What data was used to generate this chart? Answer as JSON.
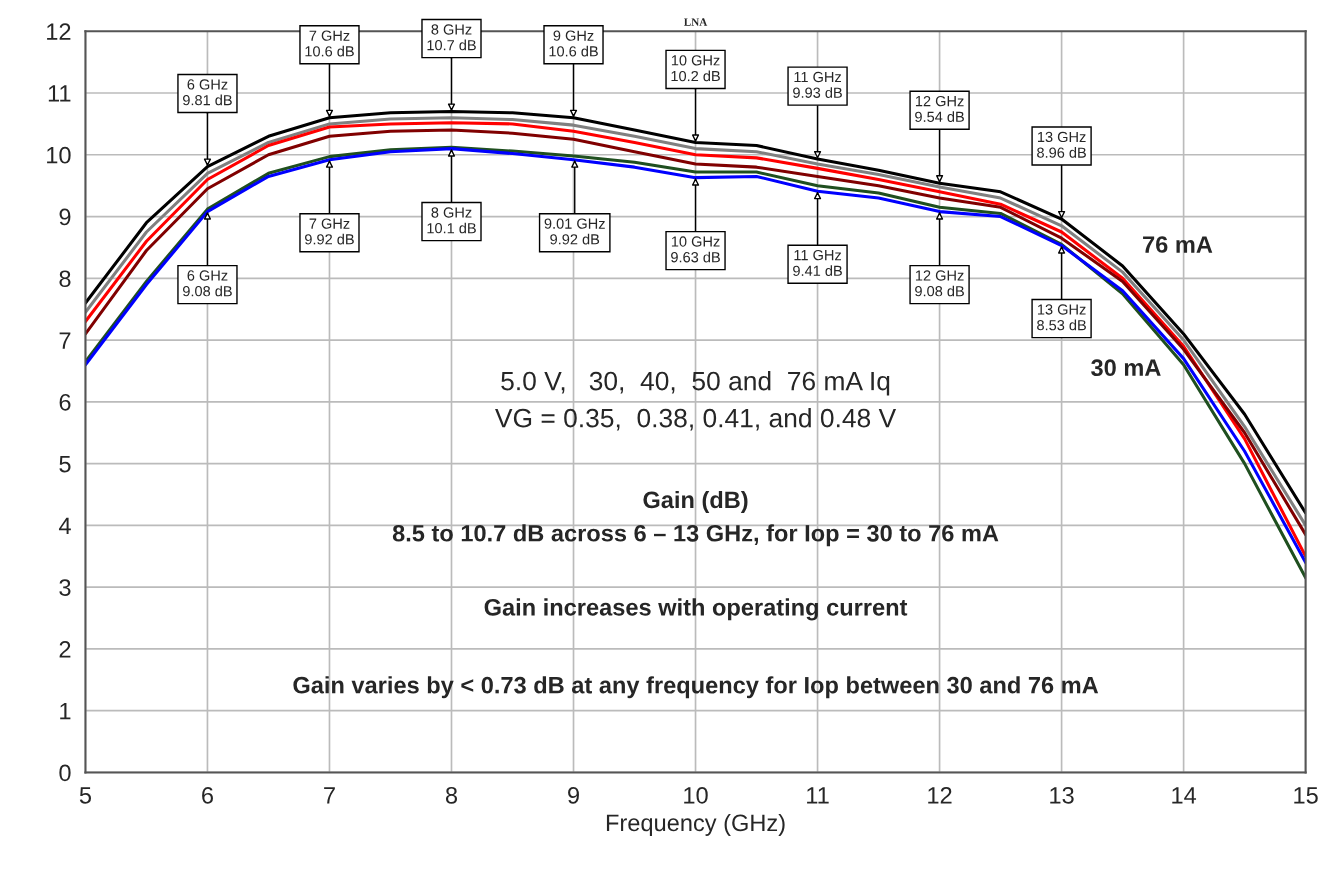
{
  "chart_data": {
    "type": "line",
    "title": "LNA",
    "xlabel": "Frequency (GHz)",
    "xlim": [
      5,
      15
    ],
    "ylim": [
      0,
      12
    ],
    "xticks": [
      5,
      6,
      7,
      8,
      9,
      10,
      11,
      12,
      13,
      14,
      15
    ],
    "yticks": [
      0,
      1,
      2,
      3,
      4,
      5,
      6,
      7,
      8,
      9,
      10,
      11,
      12
    ],
    "grid": true,
    "marker": "none",
    "line_style": "solid",
    "x": [
      5,
      5.5,
      6,
      6.5,
      7,
      7.5,
      8,
      8.5,
      9,
      9.5,
      10,
      10.5,
      11,
      11.5,
      12,
      12.5,
      13,
      13.5,
      14,
      14.5,
      15
    ],
    "series": [
      {
        "name": "76 mA",
        "color": "#000000",
        "values": [
          7.6,
          8.9,
          9.81,
          10.3,
          10.6,
          10.68,
          10.7,
          10.68,
          10.6,
          10.4,
          10.2,
          10.15,
          9.93,
          9.75,
          9.54,
          9.4,
          8.96,
          8.2,
          7.1,
          5.8,
          4.2
        ]
      },
      {
        "color": "#808080",
        "values": [
          7.45,
          8.75,
          9.7,
          10.2,
          10.5,
          10.58,
          10.6,
          10.57,
          10.48,
          10.3,
          10.1,
          10.05,
          9.85,
          9.68,
          9.48,
          9.3,
          8.85,
          8.1,
          7.0,
          5.6,
          4.0
        ]
      },
      {
        "color": "#ff0000",
        "values": [
          7.3,
          8.6,
          9.6,
          10.15,
          10.45,
          10.5,
          10.52,
          10.5,
          10.38,
          10.2,
          10.0,
          9.95,
          9.78,
          9.6,
          9.4,
          9.2,
          8.75,
          8.0,
          6.9,
          5.4,
          3.5
        ]
      },
      {
        "color": "#800000",
        "values": [
          7.1,
          8.45,
          9.45,
          10.0,
          10.3,
          10.38,
          10.4,
          10.35,
          10.25,
          10.05,
          9.85,
          9.8,
          9.65,
          9.5,
          9.3,
          9.15,
          8.65,
          7.95,
          6.85,
          5.5,
          3.85
        ]
      },
      {
        "color": "#1f4f1f",
        "values": [
          6.65,
          7.95,
          9.12,
          9.7,
          9.97,
          10.08,
          10.12,
          10.06,
          9.98,
          9.88,
          9.72,
          9.72,
          9.5,
          9.38,
          9.15,
          9.05,
          8.55,
          7.75,
          6.6,
          5.0,
          3.15
        ]
      },
      {
        "name": "30 mA",
        "color": "#0000ff",
        "values": [
          6.6,
          7.9,
          9.08,
          9.65,
          9.92,
          10.05,
          10.1,
          10.02,
          9.92,
          9.8,
          9.63,
          9.65,
          9.41,
          9.3,
          9.08,
          9.0,
          8.53,
          7.8,
          6.7,
          5.2,
          3.4
        ]
      }
    ],
    "annotations": [
      {
        "text": "6 GHz\n9.81 dB",
        "x": 6,
        "y": 9.81
      },
      {
        "text": "7 GHz\n10.6 dB",
        "x": 7,
        "y": 10.6
      },
      {
        "text": "8 GHz\n10.7 dB",
        "x": 8,
        "y": 10.7
      },
      {
        "text": "9 GHz\n10.6 dB",
        "x": 9,
        "y": 10.6
      },
      {
        "text": "10 GHz\n10.2 dB",
        "x": 10,
        "y": 10.2
      },
      {
        "text": "11 GHz\n9.93 dB",
        "x": 11,
        "y": 9.93
      },
      {
        "text": "12 GHz\n9.54 dB",
        "x": 12,
        "y": 9.54
      },
      {
        "text": "13 GHz\n8.96 dB",
        "x": 13,
        "y": 8.96
      },
      {
        "text": "6 GHz\n9.08 dB",
        "x": 6,
        "y": 9.08
      },
      {
        "text": "7 GHz\n9.92 dB",
        "x": 7,
        "y": 9.92
      },
      {
        "text": "8 GHz\n10.1 dB",
        "x": 8,
        "y": 10.1
      },
      {
        "text": "9.01 GHz\n9.92 dB",
        "x": 9.01,
        "y": 9.92
      },
      {
        "text": "10 GHz\n9.63 dB",
        "x": 10,
        "y": 9.63
      },
      {
        "text": "11 GHz\n9.41 dB",
        "x": 11,
        "y": 9.41
      },
      {
        "text": "12 GHz\n9.08 dB",
        "x": 12,
        "y": 9.08
      },
      {
        "text": "13 GHz\n8.53 dB",
        "x": 13,
        "y": 8.53
      },
      "5.0 V,   30,  40,  50 and  76 mA Iq",
      "VG = 0.35,  0.38, 0.41, and 0.48 V",
      "Gain (dB)",
      "8.5 to 10.7 dB across 6 – 13 GHz, for Iop = 30 to 76 mA",
      "Gain increases with operating current",
      "Gain varies by < 0.73 dB at any frequency for Iop between 30 and 76 mA"
    ]
  }
}
